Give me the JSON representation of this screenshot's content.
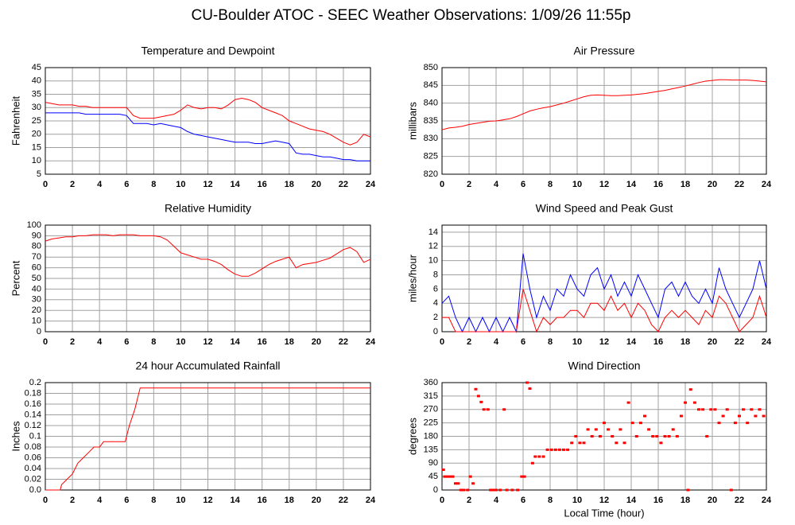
{
  "title": "CU-Boulder ATOC - SEEC Weather Observations: 1/09/26 11:55p",
  "chart_data": [
    {
      "type": "line",
      "title": "Temperature and Dewpoint",
      "y_label": "Fahrenheit",
      "grid": true,
      "x": [
        0,
        0.5,
        1,
        1.5,
        2,
        2.5,
        3,
        3.5,
        4,
        4.5,
        5,
        5.5,
        6,
        6.5,
        7,
        7.5,
        8,
        8.5,
        9,
        9.5,
        10,
        10.5,
        11,
        11.5,
        12,
        12.5,
        13,
        13.5,
        14,
        14.5,
        15,
        15.5,
        16,
        16.5,
        17,
        17.5,
        18,
        18.5,
        19,
        19.5,
        20,
        20.5,
        21,
        21.5,
        22,
        22.5,
        23,
        23.5,
        24
      ],
      "series": [
        {
          "color": "#ff0000",
          "values": [
            32,
            31.5,
            31,
            31,
            31,
            30.5,
            30.5,
            30,
            30,
            30,
            30,
            30,
            30,
            27,
            26,
            26,
            26,
            26.5,
            27,
            27.5,
            29,
            31,
            30,
            29.5,
            30,
            30,
            29.5,
            31,
            33,
            33.5,
            33,
            32,
            30,
            29,
            28,
            27,
            25,
            24,
            23,
            22,
            21.5,
            21,
            20,
            18.5,
            17,
            16,
            17,
            20,
            19
          ]
        },
        {
          "color": "#0000ff",
          "values": [
            28,
            28,
            28,
            28,
            28,
            28,
            27.5,
            27.5,
            27.5,
            27.5,
            27.5,
            27.5,
            27,
            24,
            24,
            24,
            23.5,
            24,
            23.5,
            23,
            22.5,
            21,
            20,
            19.5,
            19,
            18.5,
            18,
            17.5,
            17,
            17,
            17,
            16.5,
            16.5,
            17,
            17.5,
            17,
            16.5,
            13,
            12.5,
            12.5,
            12,
            11.5,
            11.5,
            11,
            10.5,
            10.5,
            10,
            10,
            10
          ]
        }
      ],
      "xlim": [
        0,
        24
      ],
      "xticks": [
        0,
        2,
        4,
        6,
        8,
        10,
        12,
        14,
        16,
        18,
        20,
        22,
        24
      ],
      "ylim": [
        5,
        45
      ],
      "yticks": [
        5,
        10,
        15,
        20,
        25,
        30,
        35,
        40,
        45
      ]
    },
    {
      "type": "line",
      "title": "Air Pressure",
      "y_label": "millibars",
      "grid": true,
      "x": [
        0,
        0.5,
        1,
        1.5,
        2,
        2.5,
        3,
        3.5,
        4,
        4.5,
        5,
        5.5,
        6,
        6.5,
        7,
        7.5,
        8,
        8.5,
        9,
        9.5,
        10,
        10.5,
        11,
        11.5,
        12,
        12.5,
        13,
        13.5,
        14,
        14.5,
        15,
        15.5,
        16,
        16.5,
        17,
        17.5,
        18,
        18.5,
        19,
        19.5,
        20,
        20.5,
        21,
        21.5,
        22,
        22.5,
        23,
        23.5,
        24
      ],
      "series": [
        {
          "color": "#ff0000",
          "values": [
            832.5,
            833,
            833.2,
            833.5,
            834,
            834.3,
            834.6,
            834.9,
            835,
            835.3,
            835.6,
            836.2,
            837,
            837.8,
            838.3,
            838.7,
            839,
            839.5,
            840,
            840.6,
            841.2,
            841.8,
            842.2,
            842.3,
            842.2,
            842.1,
            842.1,
            842.2,
            842.3,
            842.5,
            842.7,
            843,
            843.3,
            843.6,
            844,
            844.4,
            844.8,
            845.3,
            845.8,
            846.2,
            846.4,
            846.6,
            846.6,
            846.5,
            846.5,
            846.5,
            846.4,
            846.2,
            846
          ]
        }
      ],
      "xlim": [
        0,
        24
      ],
      "xticks": [
        0,
        2,
        4,
        6,
        8,
        10,
        12,
        14,
        16,
        18,
        20,
        22,
        24
      ],
      "ylim": [
        820,
        850
      ],
      "yticks": [
        820,
        825,
        830,
        835,
        840,
        845,
        850
      ]
    },
    {
      "type": "line",
      "title": "Relative Humidity",
      "y_label": "Percent",
      "grid": true,
      "x": [
        0,
        0.5,
        1,
        1.5,
        2,
        2.5,
        3,
        3.5,
        4,
        4.5,
        5,
        5.5,
        6,
        6.5,
        7,
        7.5,
        8,
        8.5,
        9,
        9.5,
        10,
        10.5,
        11,
        11.5,
        12,
        12.5,
        13,
        13.5,
        14,
        14.5,
        15,
        15.5,
        16,
        16.5,
        17,
        17.5,
        18,
        18.5,
        19,
        19.5,
        20,
        20.5,
        21,
        21.5,
        22,
        22.5,
        23,
        23.5,
        24
      ],
      "series": [
        {
          "color": "#ff0000",
          "values": [
            85,
            87,
            88,
            89,
            89,
            90,
            90,
            91,
            91,
            91,
            90,
            91,
            91,
            91,
            90,
            90,
            90,
            89,
            86,
            80,
            74,
            72,
            70,
            68,
            68,
            66,
            63,
            58,
            54,
            52,
            52,
            55,
            59,
            63,
            66,
            68,
            70,
            60,
            63,
            64,
            65,
            67,
            69,
            73,
            77,
            79,
            75,
            65,
            68
          ]
        }
      ],
      "xlim": [
        0,
        24
      ],
      "xticks": [
        0,
        2,
        4,
        6,
        8,
        10,
        12,
        14,
        16,
        18,
        20,
        22,
        24
      ],
      "ylim": [
        0,
        100
      ],
      "yticks": [
        0,
        10,
        20,
        30,
        40,
        50,
        60,
        70,
        80,
        90,
        100
      ]
    },
    {
      "type": "line",
      "title": "Wind Speed and Peak Gust",
      "y_label": "miles/hour",
      "grid": true,
      "x": [
        0,
        0.5,
        1,
        1.5,
        2,
        2.5,
        3,
        3.5,
        4,
        4.5,
        5,
        5.5,
        6,
        6.5,
        7,
        7.5,
        8,
        8.5,
        9,
        9.5,
        10,
        10.5,
        11,
        11.5,
        12,
        12.5,
        13,
        13.5,
        14,
        14.5,
        15,
        15.5,
        16,
        16.5,
        17,
        17.5,
        18,
        18.5,
        19,
        19.5,
        20,
        20.5,
        21,
        21.5,
        22,
        22.5,
        23,
        23.5,
        24
      ],
      "series": [
        {
          "color": "#0000ff",
          "values": [
            4,
            5,
            2,
            0,
            2,
            0,
            2,
            0,
            2,
            0,
            2,
            0,
            11,
            6,
            2,
            5,
            3,
            6,
            5,
            8,
            6,
            5,
            8,
            9,
            6,
            8,
            5,
            7,
            5,
            8,
            6,
            4,
            2,
            6,
            7,
            5,
            7,
            5,
            4,
            6,
            4,
            9,
            6,
            4,
            2,
            4,
            6,
            10,
            6
          ]
        },
        {
          "color": "#ff0000",
          "values": [
            2,
            2,
            0,
            0,
            0,
            0,
            0,
            0,
            0,
            0,
            0,
            0,
            6,
            3,
            0,
            2,
            1,
            2,
            2,
            3,
            3,
            2,
            4,
            4,
            3,
            5,
            3,
            4,
            2,
            4,
            3,
            1,
            0,
            2,
            3,
            2,
            3,
            2,
            1,
            3,
            2,
            5,
            4,
            2,
            0,
            1,
            2,
            5,
            2
          ]
        }
      ],
      "xlim": [
        0,
        24
      ],
      "xticks": [
        0,
        2,
        4,
        6,
        8,
        10,
        12,
        14,
        16,
        18,
        20,
        22,
        24
      ],
      "ylim": [
        0,
        15
      ],
      "yticks": [
        0,
        2,
        4,
        6,
        8,
        10,
        12,
        14
      ]
    },
    {
      "type": "line",
      "title": "24 hour Accumulated Rainfall",
      "y_label": "Inches",
      "grid": true,
      "x": [
        0,
        1.1,
        1.2,
        1.6,
        2.0,
        2.4,
        2.8,
        3.2,
        3.6,
        4.0,
        4.3,
        5.9,
        6.2,
        6.6,
        7.0,
        7.2,
        24
      ],
      "series": [
        {
          "color": "#ff0000",
          "values": [
            0,
            0,
            0.01,
            0.02,
            0.03,
            0.05,
            0.06,
            0.07,
            0.08,
            0.08,
            0.09,
            0.09,
            0.12,
            0.15,
            0.19,
            0.19,
            0.19
          ]
        }
      ],
      "xlim": [
        0,
        24
      ],
      "xticks": [
        0,
        2,
        4,
        6,
        8,
        10,
        12,
        14,
        16,
        18,
        20,
        22,
        24
      ],
      "ylim": [
        0,
        0.2
      ],
      "yticks": [
        {
          "value": 0,
          "label": "0.0"
        },
        0.02,
        0.04,
        0.06,
        0.08,
        0.1,
        0.12,
        0.14,
        0.16,
        0.18,
        0.2
      ]
    },
    {
      "type": "scatter",
      "title": "Wind Direction",
      "y_label": "degrees",
      "x_label": "Local Time (hour)",
      "grid": true,
      "x": [
        0.1,
        0.2,
        0.4,
        0.6,
        0.8,
        1.0,
        1.2,
        1.4,
        1.6,
        1.9,
        2.1,
        2.3,
        2.5,
        2.7,
        2.9,
        3.1,
        3.4,
        3.6,
        3.8,
        4.0,
        4.3,
        4.6,
        4.8,
        5.2,
        5.6,
        5.9,
        6.1,
        6.3,
        6.5,
        6.7,
        6.9,
        7.2,
        7.5,
        7.8,
        8.1,
        8.4,
        8.7,
        9.0,
        9.3,
        9.6,
        9.9,
        10.2,
        10.5,
        10.8,
        11.1,
        11.4,
        11.7,
        12.0,
        12.3,
        12.6,
        12.9,
        13.2,
        13.5,
        13.8,
        14.1,
        14.4,
        14.7,
        15.0,
        15.3,
        15.6,
        15.9,
        16.2,
        16.5,
        16.8,
        17.1,
        17.4,
        17.7,
        18.0,
        18.2,
        18.4,
        18.7,
        19.0,
        19.3,
        19.6,
        19.9,
        20.2,
        20.5,
        20.8,
        21.1,
        21.4,
        21.7,
        22.0,
        22.3,
        22.6,
        22.9,
        23.2,
        23.5,
        23.8
      ],
      "series": [
        {
          "color": "#ff0000",
          "values": [
            68,
            45,
            45,
            45,
            45,
            22,
            22,
            0,
            0,
            0,
            45,
            22,
            338,
            315,
            295,
            270,
            270,
            0,
            0,
            0,
            0,
            270,
            0,
            0,
            0,
            45,
            45,
            360,
            340,
            90,
            112,
            112,
            112,
            135,
            135,
            135,
            135,
            135,
            135,
            158,
            180,
            158,
            158,
            203,
            180,
            203,
            180,
            225,
            203,
            180,
            158,
            203,
            158,
            293,
            225,
            180,
            225,
            248,
            203,
            180,
            180,
            158,
            180,
            180,
            203,
            180,
            248,
            293,
            0,
            337,
            293,
            270,
            270,
            180,
            270,
            270,
            225,
            248,
            270,
            0,
            225,
            248,
            270,
            225,
            270,
            248,
            270,
            248
          ]
        }
      ],
      "xlim": [
        0,
        24
      ],
      "xticks": [
        0,
        2,
        4,
        6,
        8,
        10,
        12,
        14,
        16,
        18,
        20,
        22,
        24
      ],
      "ylim": [
        0,
        360
      ],
      "yticks": [
        0,
        45,
        90,
        135,
        180,
        225,
        270,
        315,
        360
      ]
    }
  ]
}
